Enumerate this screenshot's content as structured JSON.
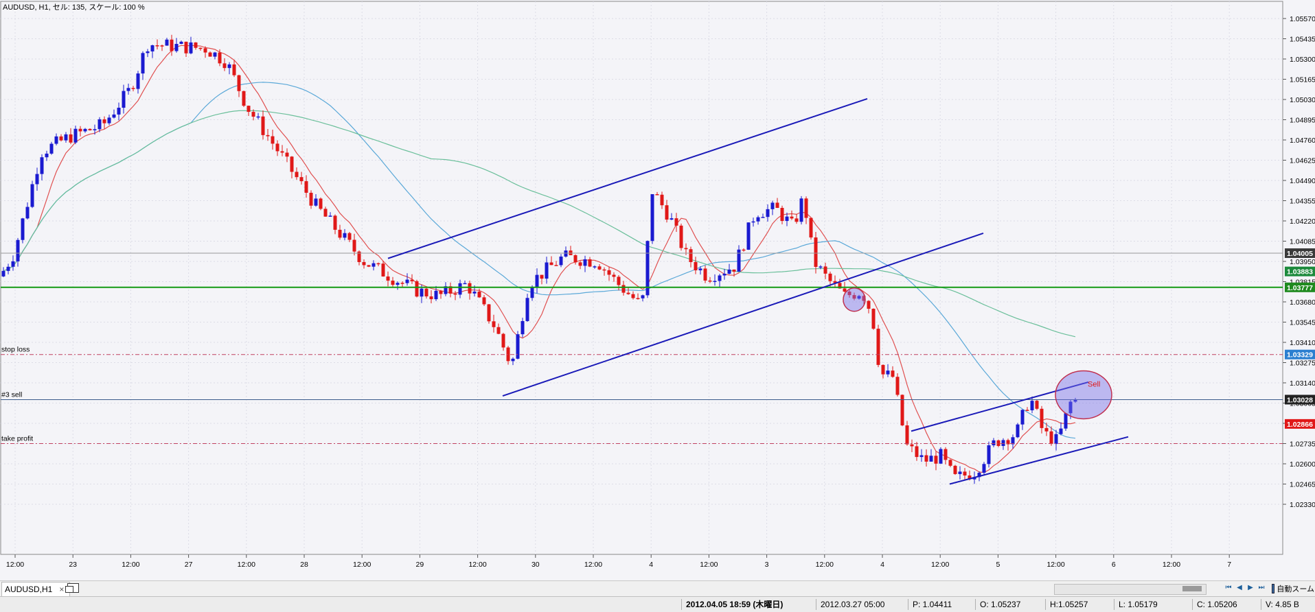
{
  "chart": {
    "header": "AUDUSD, H1, セル: 135, スケール: 100 %",
    "price_ticks": [
      "1.05570",
      "1.05435",
      "1.05300",
      "1.05165",
      "1.05030",
      "1.04895",
      "1.04760",
      "1.04625",
      "1.04490",
      "1.04355",
      "1.04220",
      "1.04085",
      "1.03950",
      "1.03815",
      "1.03680",
      "1.03545",
      "1.03410",
      "1.03275",
      "1.03140",
      "1.03005",
      "1.02870",
      "1.02735",
      "1.02600",
      "1.02465",
      "1.02330"
    ],
    "time_ticks": [
      "12:00",
      "23",
      "12:00",
      "27",
      "12:00",
      "28",
      "12:00",
      "29",
      "12:00",
      "30",
      "12:00",
      "4",
      "12:00",
      "3",
      "12:00",
      "4",
      "12:00",
      "5",
      "12:00",
      "6",
      "12:00",
      "7"
    ],
    "level_badges": [
      {
        "label": "1.04005",
        "price": 1.04005,
        "color": "#3a3a3a"
      },
      {
        "label": "1.03883",
        "price": 1.03883,
        "color": "#1c8a3c"
      },
      {
        "label": "1.03777",
        "price": 1.03777,
        "color": "#1f8a1f"
      },
      {
        "label": "1.03329",
        "price": 1.03329,
        "color": "#2a7fd0"
      },
      {
        "label": "1.03028",
        "price": 1.03028,
        "color": "#222222"
      },
      {
        "label": "1.02866",
        "price": 1.02866,
        "color": "#e01818"
      }
    ],
    "order_lines": {
      "stop_loss": "stop loss",
      "sell": "#3 sell",
      "take_profit": "take profit"
    },
    "sell_marker": "Sell",
    "colors": {
      "bull": "#1a1ad0",
      "bear": "#e01818",
      "ma_fast": "#e05050",
      "ma_mid": "#5aa8d8",
      "ma_slow": "#6abf9a",
      "support": "#139a13",
      "trend": "#1a1ab8"
    }
  },
  "tab": {
    "label": "AUDUSD,H1",
    "close": "×"
  },
  "toolbar": {
    "auto_scroll": "自動スーム",
    "nav": [
      "⏮",
      "◀",
      "▶",
      "⏭"
    ]
  },
  "status": {
    "datetime": "2012.04.05 18:59 (木曜日)",
    "bar_time": "2012.03.27 05:00",
    "p": "P: 1.04411",
    "o": "O: 1.05237",
    "h": "H:1.05257",
    "l": "L: 1.05179",
    "c": "C: 1.05206",
    "v": "V: 4.85 B"
  }
}
